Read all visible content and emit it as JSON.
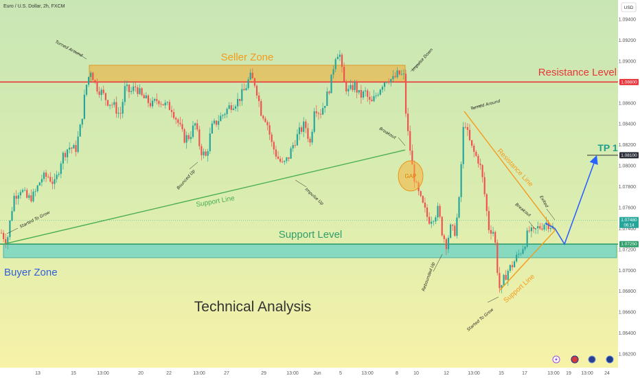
{
  "header": {
    "symbol_title": "Euro / U.S. Dollar, 2h, FXCM",
    "currency_button": "USD"
  },
  "colors": {
    "background_top": "#c8e6b4",
    "background_bottom": "#f7f2a8",
    "up_candle": "#26a69a",
    "down_candle": "#ef5350",
    "seller_zone": "#f0a830",
    "buyer_zone": "#5fd0c8",
    "resistance": "#e8353b",
    "support_level": "#2e9e6a",
    "support_line": "#4caf50",
    "triangle": "#f59a1b",
    "projection": "#2962ff",
    "tp_label": "#1e9e8c",
    "buyer_label": "#2f5fd8"
  },
  "chart_data": {
    "type": "candlestick",
    "title": "Technical Analysis",
    "y_axis": {
      "ylim": [
        1.0615,
        1.095
      ],
      "ticks": [
        "1.09400",
        "1.09200",
        "1.09000",
        "1.08800",
        "1.08600",
        "1.08400",
        "1.08200",
        "1.08000",
        "1.07800",
        "1.07600",
        "1.07400",
        "1.07200",
        "1.07000",
        "1.06800",
        "1.06600",
        "1.06400",
        "1.06200"
      ]
    },
    "x_axis": {
      "ticks": [
        "13",
        "15",
        "13:00",
        "20",
        "22",
        "13:00",
        "27",
        "29",
        "13:00",
        "Jun",
        "5",
        "13:00",
        "8",
        "10",
        "12",
        "13:00",
        "15",
        "17",
        "13:00",
        "19",
        "13:00",
        "24"
      ]
    },
    "price_labels": [
      {
        "text": "1.08800",
        "value": 1.088,
        "style": "red"
      },
      {
        "text": "1.08100",
        "value": 1.081,
        "style": "dark"
      },
      {
        "text": "1.07480",
        "value": 1.0748,
        "style": "teal",
        "subtext": "06:14"
      },
      {
        "text": "1.07250",
        "value": 1.0725,
        "style": "green"
      }
    ],
    "close_path": [
      [
        0,
        1.0738
      ],
      [
        10,
        1.0727
      ],
      [
        20,
        1.077
      ],
      [
        30,
        1.0778
      ],
      [
        40,
        1.0768
      ],
      [
        50,
        1.0772
      ],
      [
        60,
        1.0788
      ],
      [
        70,
        1.079
      ],
      [
        80,
        1.0782
      ],
      [
        90,
        1.0808
      ],
      [
        100,
        1.0818
      ],
      [
        110,
        1.0815
      ],
      [
        118,
        1.084
      ],
      [
        125,
        1.0875
      ],
      [
        132,
        1.0892
      ],
      [
        140,
        1.0876
      ],
      [
        148,
        1.087
      ],
      [
        156,
        1.0862
      ],
      [
        165,
        1.0858
      ],
      [
        175,
        1.0848
      ],
      [
        182,
        1.0874
      ],
      [
        190,
        1.087
      ],
      [
        198,
        1.0876
      ],
      [
        206,
        1.0866
      ],
      [
        214,
        1.0862
      ],
      [
        222,
        1.0858
      ],
      [
        230,
        1.0864
      ],
      [
        240,
        1.0858
      ],
      [
        250,
        1.0855
      ],
      [
        260,
        1.084
      ],
      [
        268,
        1.0826
      ],
      [
        276,
        1.0828
      ],
      [
        284,
        1.084
      ],
      [
        292,
        1.0815
      ],
      [
        300,
        1.0808
      ],
      [
        308,
        1.0836
      ],
      [
        318,
        1.0844
      ],
      [
        326,
        1.085
      ],
      [
        336,
        1.0858
      ],
      [
        346,
        1.0862
      ],
      [
        356,
        1.0872
      ],
      [
        364,
        1.0885
      ],
      [
        372,
        1.0878
      ],
      [
        380,
        1.0852
      ],
      [
        388,
        1.0844
      ],
      [
        396,
        1.082
      ],
      [
        404,
        1.0808
      ],
      [
        412,
        1.08
      ],
      [
        420,
        1.0808
      ],
      [
        428,
        1.0822
      ],
      [
        436,
        1.0832
      ],
      [
        444,
        1.084
      ],
      [
        452,
        1.082
      ],
      [
        458,
        1.0858
      ],
      [
        466,
        1.085
      ],
      [
        474,
        1.0862
      ],
      [
        482,
        1.088
      ],
      [
        488,
        1.0905
      ],
      [
        494,
        1.091
      ],
      [
        500,
        1.088
      ],
      [
        508,
        1.087
      ],
      [
        516,
        1.0878
      ],
      [
        524,
        1.0866
      ],
      [
        532,
        1.087
      ],
      [
        540,
        1.0858
      ],
      [
        548,
        1.0868
      ],
      [
        556,
        1.0878
      ],
      [
        564,
        1.0884
      ],
      [
        572,
        1.0882
      ],
      [
        580,
        1.0888
      ],
      [
        588,
        1.0885
      ],
      [
        592,
        1.084
      ],
      [
        596,
        1.0822
      ],
      [
        600,
        1.08
      ],
      [
        606,
        1.078
      ],
      [
        612,
        1.0768
      ],
      [
        618,
        1.0758
      ],
      [
        624,
        1.0748
      ],
      [
        632,
        1.0752
      ],
      [
        638,
        1.0758
      ],
      [
        644,
        1.0736
      ],
      [
        650,
        1.0725
      ],
      [
        656,
        1.074
      ],
      [
        662,
        1.0736
      ],
      [
        668,
        1.076
      ],
      [
        672,
        1.0806
      ],
      [
        676,
        1.0848
      ],
      [
        680,
        1.0832
      ],
      [
        686,
        1.0818
      ],
      [
        692,
        1.081
      ],
      [
        698,
        1.0804
      ],
      [
        704,
        1.0782
      ],
      [
        708,
        1.076
      ],
      [
        712,
        1.074
      ],
      [
        718,
        1.0738
      ],
      [
        722,
        1.0722
      ],
      [
        726,
        1.0685
      ],
      [
        730,
        1.068
      ],
      [
        734,
        1.0692
      ],
      [
        740,
        1.07
      ],
      [
        746,
        1.0705
      ],
      [
        752,
        1.0712
      ],
      [
        758,
        1.0718
      ],
      [
        764,
        1.0726
      ],
      [
        770,
        1.0738
      ],
      [
        776,
        1.0735
      ],
      [
        782,
        1.074
      ],
      [
        788,
        1.0742
      ],
      [
        794,
        1.0746
      ],
      [
        800,
        1.0744
      ],
      [
        806,
        1.074
      ]
    ],
    "zones": [
      {
        "name": "Seller Zone",
        "y0": 1.088,
        "y1": 1.0896,
        "x0": 130,
        "x1": 590
      },
      {
        "name": "Buyer Zone",
        "y0": 1.0712,
        "y1": 1.0725,
        "x0": 5,
        "x1": 898
      }
    ],
    "levels": [
      {
        "name": "Resistance Level",
        "value": 1.088
      },
      {
        "name": "Support Level",
        "value": 1.0725
      },
      {
        "name": "TP 1",
        "value": 1.081
      }
    ],
    "trendlines": [
      {
        "name": "Support Line",
        "points": [
          [
            5,
            1.0725
          ],
          [
            590,
            1.0815
          ]
        ]
      },
      {
        "name": "Resistance Line",
        "points": [
          [
            676,
            1.0852
          ],
          [
            808,
            1.0738
          ]
        ]
      },
      {
        "name": "Support Line",
        "points": [
          [
            728,
            1.0681
          ],
          [
            808,
            1.0738
          ]
        ]
      }
    ],
    "projection": [
      [
        794,
        1.0745
      ],
      [
        808,
        1.074
      ],
      [
        822,
        1.0725
      ],
      [
        868,
        1.0808
      ]
    ],
    "annotations": [
      "Turned Around",
      "Bounced Up",
      "Impulse Up",
      "Started To Grow",
      "Impulse Down",
      "Breakout",
      "GAP",
      "Rebounded Up",
      "Started To Grow",
      "Breakout",
      "Exited",
      "Turned Around"
    ]
  },
  "labels": {
    "seller_zone": "Seller Zone",
    "buyer_zone": "Buyer Zone",
    "resistance_level": "Resistance Level",
    "support_level": "Support Level",
    "support_line_main": "Support Line",
    "resistance_line": "Resistance Line",
    "support_line_triangle": "Support Line",
    "tp1": "TP 1",
    "gap": "GAP",
    "title": "Technical Analysis",
    "notes": {
      "turned_around_1": "Turned Around",
      "started_to_grow_1": "Started To Grow",
      "bounced_up": "Bounced Up",
      "impulse_up": "Impulse Up",
      "impulse_down": "Impulse Down",
      "breakout_1": "Breakout",
      "rebounded_up": "Rebounded Up",
      "started_to_grow_2": "Started To Grow",
      "breakout_2": "Breakout",
      "exited": "Exited",
      "turned_around_2": "Turned Around"
    }
  },
  "toolbar_icons": [
    "lightning-icon",
    "us-flag-icon",
    "eu-flag-icon",
    "circle-icon"
  ]
}
